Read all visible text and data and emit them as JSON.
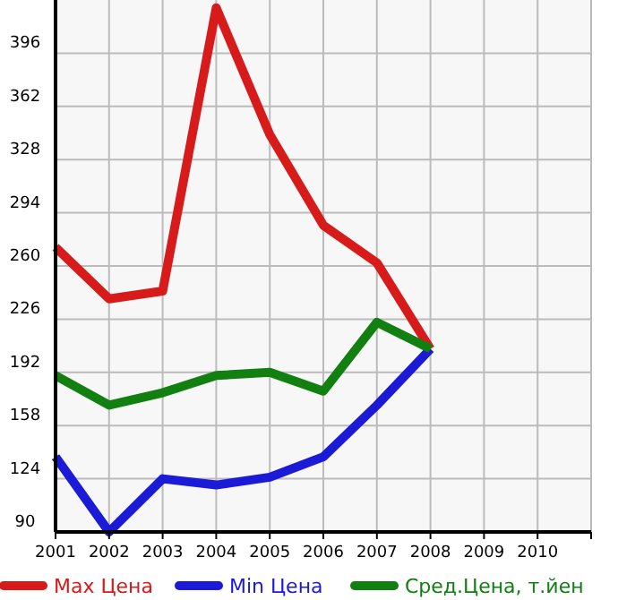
{
  "chart_data": {
    "type": "line",
    "x": [
      2001,
      2002,
      2003,
      2004,
      2005,
      2006,
      2007,
      2008
    ],
    "series": [
      {
        "name": "Max Цена",
        "color": "#d71a1a",
        "values": [
          272,
          239,
          244,
          425,
          344,
          286,
          262,
          207
        ]
      },
      {
        "name": "Min Цена",
        "color": "#1a1ad7",
        "values": [
          138,
          90,
          124,
          120,
          125,
          138,
          171,
          207
        ]
      },
      {
        "name": "Сред.Цена, т.йен",
        "color": "#118011",
        "values": [
          190,
          171,
          179,
          190,
          192,
          180,
          224,
          207
        ]
      }
    ],
    "xlim": [
      2001,
      2011
    ],
    "xticks": [
      2001,
      2002,
      2003,
      2004,
      2005,
      2006,
      2007,
      2008,
      2009,
      2010
    ],
    "ylim": [
      90,
      430
    ],
    "yticks": [
      90,
      124,
      158,
      192,
      226,
      260,
      294,
      328,
      362,
      396
    ],
    "grid": true,
    "legend": "bottom",
    "marker": "none",
    "line_style": "solid"
  }
}
